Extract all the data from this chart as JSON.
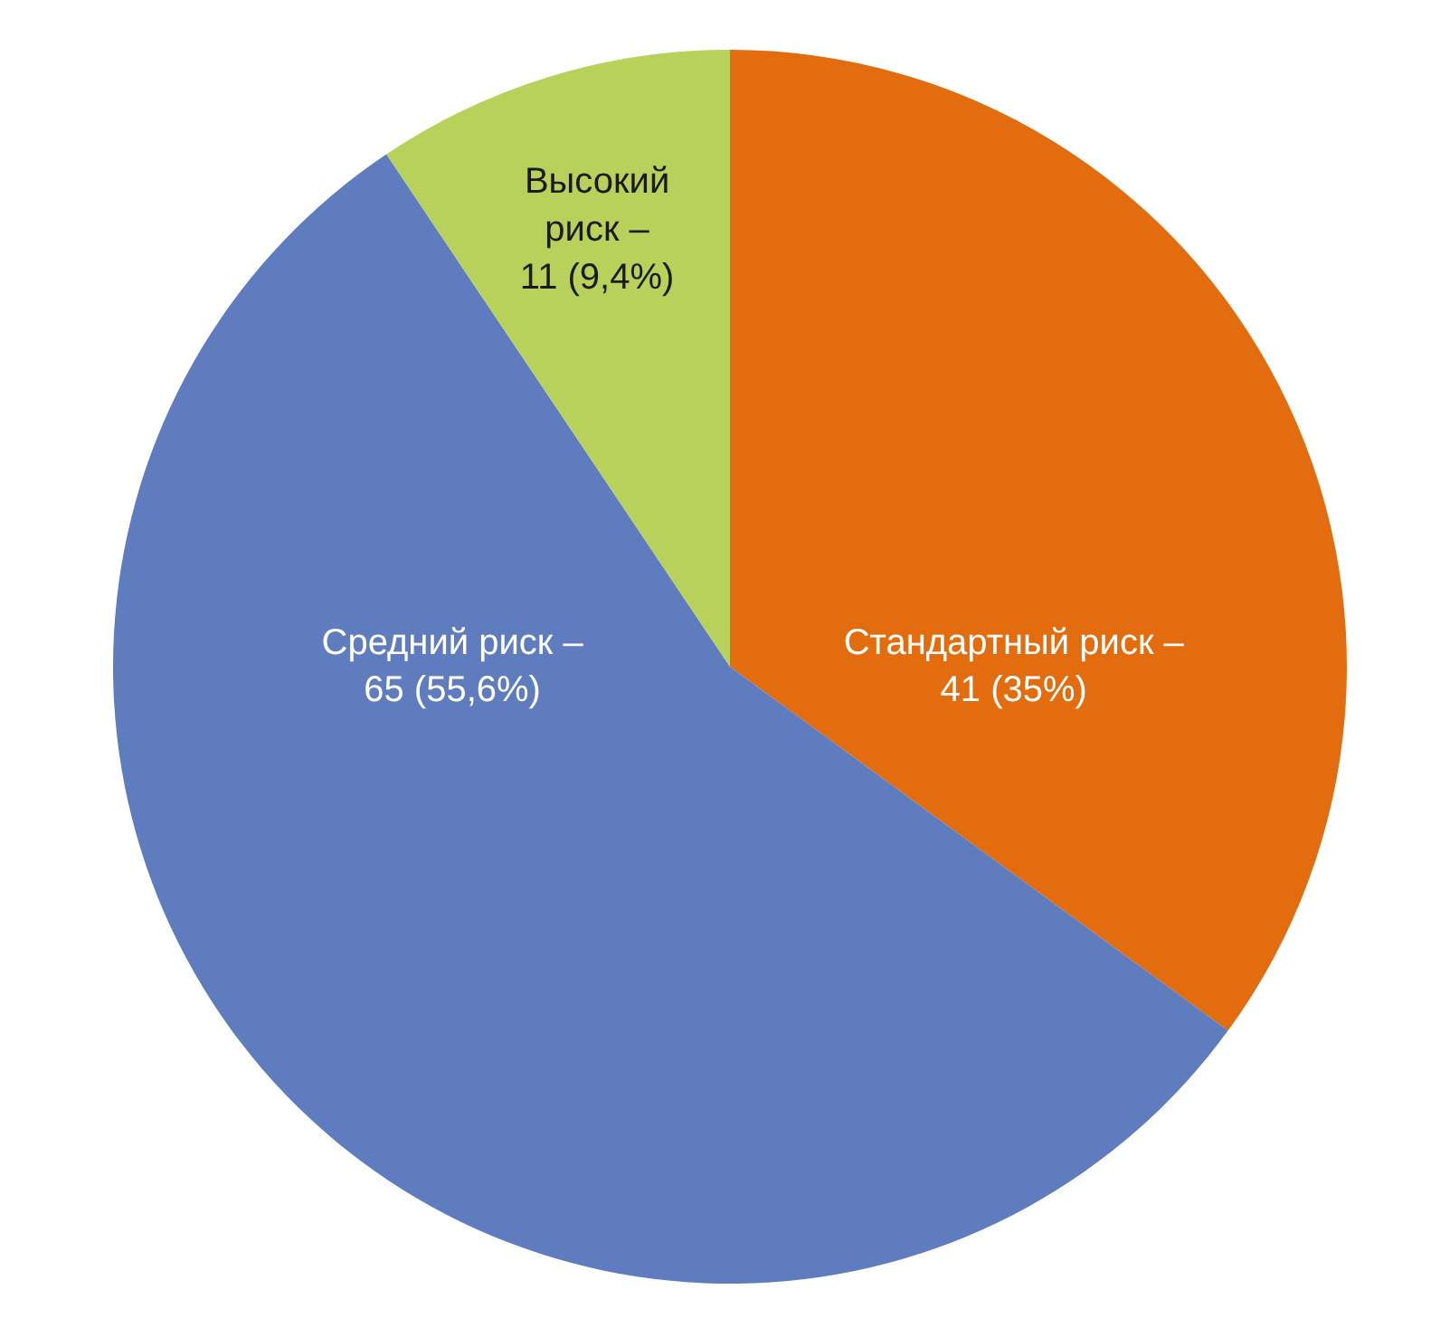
{
  "chart_data": {
    "type": "pie",
    "categories": [
      "Стандартный риск –",
      "Средний риск –",
      "Высокий риск –"
    ],
    "values": [
      41,
      65,
      11
    ],
    "value_labels": [
      "41 (35%)",
      "65 (55,6%)",
      "11 (9,4%)"
    ],
    "colors": [
      "#e36c0f",
      "#5e7cbe",
      "#b8d15a"
    ]
  }
}
